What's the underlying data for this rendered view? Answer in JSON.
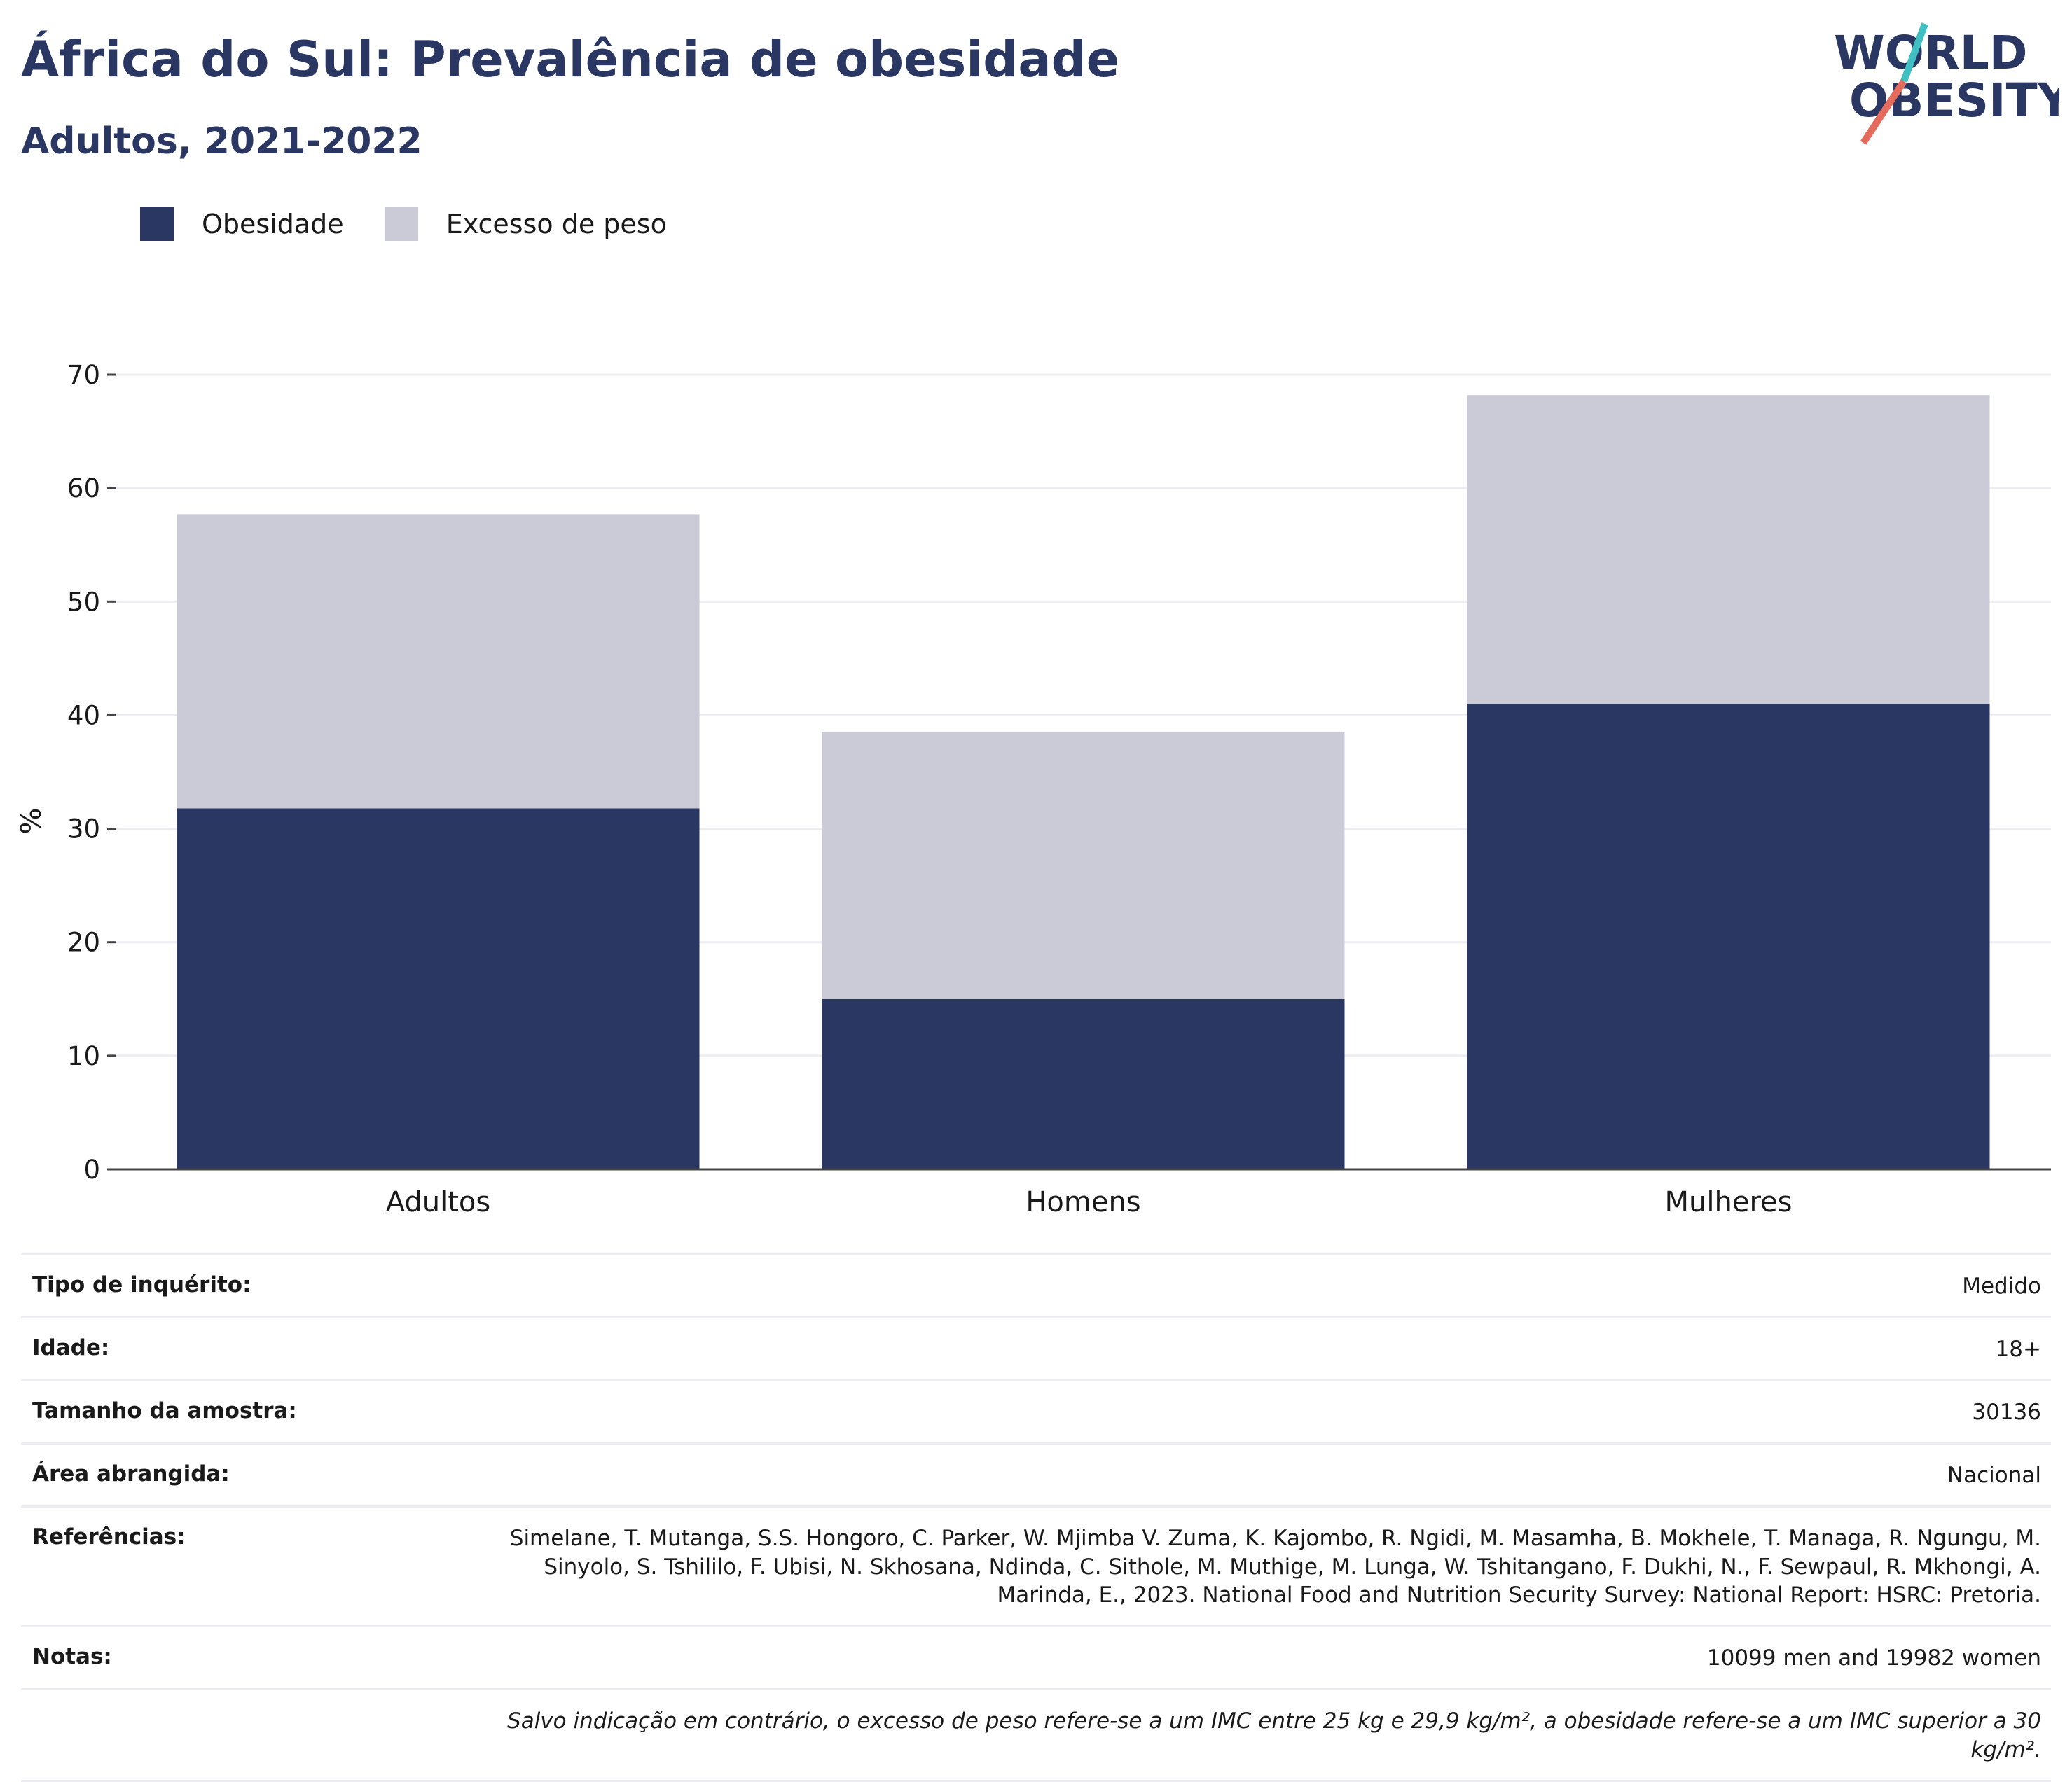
{
  "header": {
    "title": "África do Sul: Prevalência de obesidade",
    "subtitle": "Adultos, 2021-2022"
  },
  "logo": {
    "line1": "WORLD",
    "line2": "OBESITY"
  },
  "colors": {
    "obesity": "#2a3763",
    "overweight": "#cacbd6",
    "text": "#2a3763"
  },
  "chart_data": {
    "type": "bar",
    "stacked": true,
    "categories": [
      "Adultos",
      "Homens",
      "Mulheres"
    ],
    "series": [
      {
        "name": "Obesidade",
        "values": [
          31.8,
          15.0,
          41.0
        ]
      },
      {
        "name": "Excesso de peso",
        "values": [
          25.9,
          23.5,
          27.2
        ]
      }
    ],
    "ylabel": "%",
    "ylim": [
      0,
      70
    ],
    "yticks": [
      0,
      10,
      20,
      30,
      40,
      50,
      60,
      70
    ],
    "grid": true,
    "legend_position": "top-left"
  },
  "meta": {
    "survey_type": {
      "label": "Tipo de inquérito:",
      "value": "Medido"
    },
    "age": {
      "label": "Idade:",
      "value": "18+"
    },
    "sample_size": {
      "label": "Tamanho da amostra:",
      "value": "30136"
    },
    "area": {
      "label": "Área abrangida:",
      "value": "Nacional"
    },
    "references": {
      "label": "Referências:",
      "value": "Simelane, T. Mutanga, S.S. Hongoro, C. Parker, W. Mjimba V. Zuma, K. Kajombo, R. Ngidi, M. Masamha, B. Mokhele, T. Managa, R. Ngungu, M. Sinyolo, S. Tshililo, F. Ubisi, N. Skhosana, Ndinda, C. Sithole, M. Muthige, M. Lunga, W. Tshitangano, F. Dukhi, N., F. Sewpaul, R. Mkhongi, A. Marinda, E., 2023. National Food and Nutrition Security Survey: National Report: HSRC: Pretoria."
    },
    "notes": {
      "label": "Notas:",
      "value": "10099 men and 19982 women"
    },
    "footnote": "Salvo indicação em contrário, o excesso de peso refere-se a um IMC entre 25 kg e 29,9 kg/m², a obesidade refere-se a um IMC superior a 30 kg/m²."
  }
}
